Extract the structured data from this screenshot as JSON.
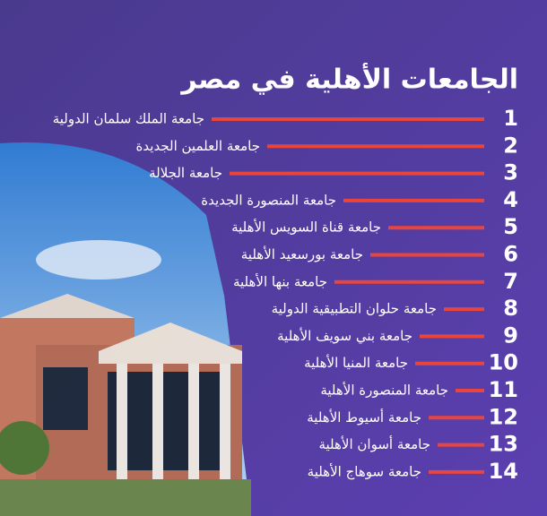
{
  "title": "الجامعات الأهلية في مصر",
  "items": [
    {
      "number": "1",
      "name": "جامعة الملك سلمان الدولية"
    },
    {
      "number": "2",
      "name": "جامعة العلمين الجديدة"
    },
    {
      "number": "3",
      "name": "جامعة الجلالة"
    },
    {
      "number": "4",
      "name": "جامعة المنصورة الجديدة"
    },
    {
      "number": "5",
      "name": "جامعة قناة السويس الأهلية"
    },
    {
      "number": "6",
      "name": "جامعة بورسعيد الأهلية"
    },
    {
      "number": "7",
      "name": "جامعة بنها الأهلية"
    },
    {
      "number": "8",
      "name": "جامعة حلوان التطبيقية الدولية"
    },
    {
      "number": "9",
      "name": "جامعة بني سويف الأهلية"
    },
    {
      "number": "10",
      "name": "جامعة المنيا الأهلية"
    },
    {
      "number": "11",
      "name": "جامعة المنصورة الأهلية"
    },
    {
      "number": "12",
      "name": "جامعة أسيوط الأهلية"
    },
    {
      "number": "13",
      "name": "جامعة أسوان الأهلية"
    },
    {
      "number": "14",
      "name": "جامعة سوهاج الأهلية"
    }
  ]
}
